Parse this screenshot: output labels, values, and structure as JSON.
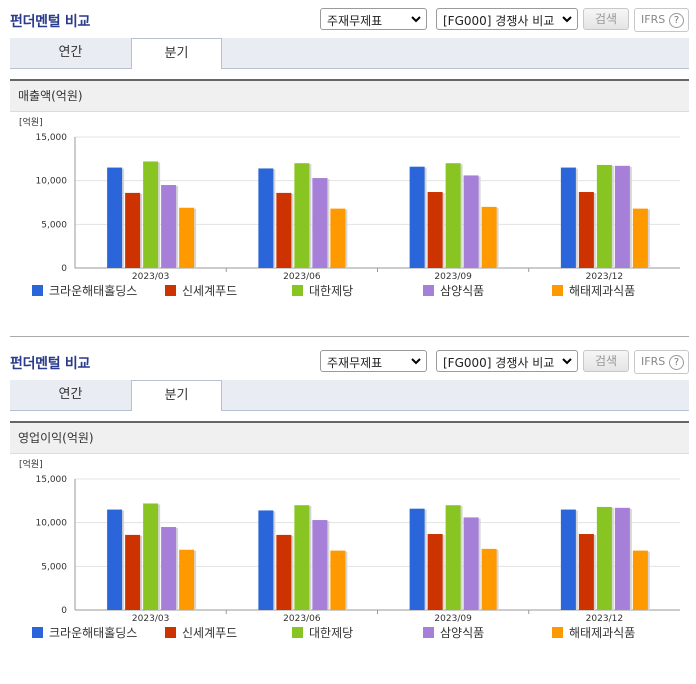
{
  "sections": [
    {
      "title": "펀더멘털 비교",
      "statement_select": "주재무제표",
      "compare_select": "[FG000] 경쟁사 비교",
      "search_label": "검색",
      "ifrs_label": "IFRS",
      "help_symbol": "?",
      "tabs": [
        {
          "label": "연간"
        },
        {
          "label": "분기"
        }
      ],
      "active_tab": "분기",
      "chart_title": "매출액(억원)"
    },
    {
      "title": "펀더멘털 비교",
      "statement_select": "주재무제표",
      "compare_select": "[FG000] 경쟁사 비교",
      "search_label": "검색",
      "ifrs_label": "IFRS",
      "help_symbol": "?",
      "tabs": [
        {
          "label": "연간"
        },
        {
          "label": "분기"
        }
      ],
      "active_tab": "분기",
      "chart_title": "영업이익(억원)"
    }
  ],
  "chart_data": [
    {
      "type": "bar",
      "title": "매출액(억원)",
      "unit_label": "[억원]",
      "categories": [
        "2023/03",
        "2023/06",
        "2023/09",
        "2023/12"
      ],
      "ylim": [
        0,
        15000
      ],
      "yticks": [
        0,
        5000,
        10000,
        15000
      ],
      "ytick_labels": [
        "0",
        "5,000",
        "10,000",
        "15,000"
      ],
      "grid": true,
      "legend_position": "bottom",
      "series": [
        {
          "name": "크라운해태홀딩스",
          "color": "#2a66d9",
          "values": [
            11500,
            11400,
            11600,
            11500
          ]
        },
        {
          "name": "신세계푸드",
          "color": "#cc3300",
          "values": [
            8600,
            8600,
            8700,
            8700
          ]
        },
        {
          "name": "대한제당",
          "color": "#88c522",
          "values": [
            12200,
            12000,
            12000,
            11800
          ]
        },
        {
          "name": "삼양식품",
          "color": "#a57fd8",
          "values": [
            9500,
            10300,
            10600,
            11700
          ]
        },
        {
          "name": "해태제과식품",
          "color": "#ff9900",
          "values": [
            6900,
            6800,
            7000,
            6800
          ]
        }
      ]
    },
    {
      "type": "bar",
      "title": "영업이익(억원)",
      "unit_label": "[억원]",
      "categories": [
        "2023/03",
        "2023/06",
        "2023/09",
        "2023/12"
      ],
      "ylim": [
        0,
        15000
      ],
      "yticks": [
        0,
        5000,
        10000,
        15000
      ],
      "ytick_labels": [
        "0",
        "5,000",
        "10,000",
        "15,000"
      ],
      "grid": true,
      "legend_position": "bottom",
      "series": [
        {
          "name": "크라운해태홀딩스",
          "color": "#2a66d9",
          "values": [
            11500,
            11400,
            11600,
            11500
          ]
        },
        {
          "name": "신세계푸드",
          "color": "#cc3300",
          "values": [
            8600,
            8600,
            8700,
            8700
          ]
        },
        {
          "name": "대한제당",
          "color": "#88c522",
          "values": [
            12200,
            12000,
            12000,
            11800
          ]
        },
        {
          "name": "삼양식품",
          "color": "#a57fd8",
          "values": [
            9500,
            10300,
            10600,
            11700
          ]
        },
        {
          "name": "해태제과식품",
          "color": "#ff9900",
          "values": [
            6900,
            6800,
            7000,
            6800
          ]
        }
      ]
    }
  ]
}
